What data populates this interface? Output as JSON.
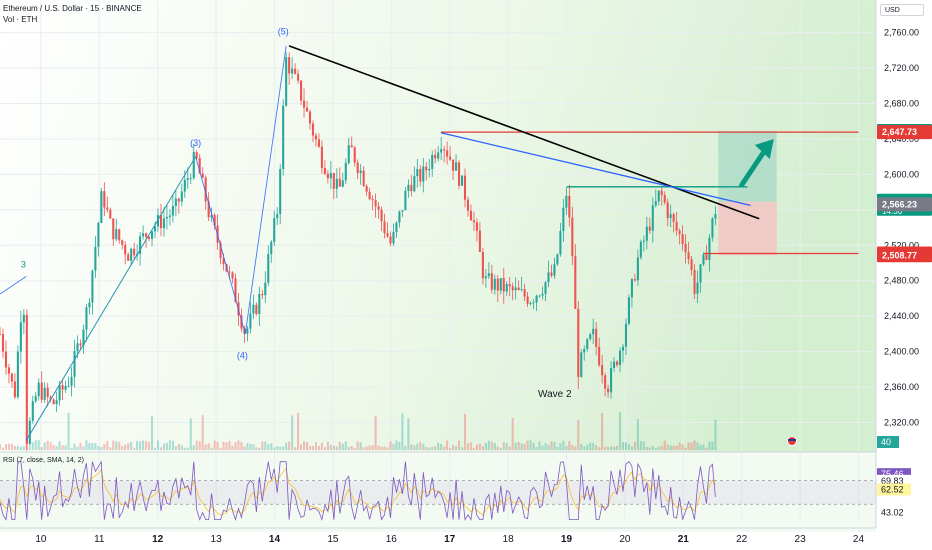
{
  "header": {
    "symbol_line": "Ethereum / U.S. Dollar · 15 · BINANCE",
    "volume_line": "Vol · ETH",
    "currency": "USD"
  },
  "colors": {
    "up": "#26a69a",
    "down": "#ef5350",
    "target_zone": "#a8d8c6",
    "stop_zone": "#f2c4c2",
    "trendline": "#000000",
    "wave_line": "#2962ff",
    "resistance": "#e53935",
    "support": "#089981",
    "arrow": "#089981",
    "rsi_line": "#7e57c2",
    "rsi_ma": "#fbc02d"
  },
  "chart_data": {
    "type": "candlestick",
    "symbol": "ETH/USD",
    "timeframe": "15",
    "exchange": "BINANCE",
    "x": {
      "ticks": [
        "10",
        "11",
        "12",
        "13",
        "14",
        "15",
        "16",
        "17",
        "18",
        "19",
        "20",
        "21",
        "22",
        "23",
        "24"
      ],
      "bold_ticks": [
        "12",
        "14",
        "17",
        "19",
        "21"
      ],
      "range_days": [
        9.3,
        24.3
      ]
    },
    "y": {
      "ticks": [
        2320,
        2360,
        2400,
        2440,
        2480,
        2520,
        2560,
        2600,
        2640,
        2680,
        2720,
        2760
      ],
      "tick_labels": [
        "2,320.00",
        "2,360.00",
        "2,400.00",
        "2,440.00",
        "2,480.00",
        "2,520.00",
        "2,560.00",
        "2,600.00",
        "2,640.00",
        "2,680.00",
        "2,720.00",
        "2,760.00"
      ],
      "range": [
        2289,
        2772
      ]
    },
    "price_path": [
      [
        9.3,
        2420
      ],
      [
        9.55,
        2350
      ],
      [
        9.7,
        2480
      ],
      [
        9.75,
        2300
      ],
      [
        9.95,
        2360
      ],
      [
        10.2,
        2340
      ],
      [
        10.5,
        2370
      ],
      [
        10.8,
        2450
      ],
      [
        11.05,
        2580
      ],
      [
        11.2,
        2540
      ],
      [
        11.5,
        2510
      ],
      [
        11.9,
        2540
      ],
      [
        12.3,
        2560
      ],
      [
        12.65,
        2620
      ],
      [
        12.9,
        2550
      ],
      [
        13.3,
        2470
      ],
      [
        13.5,
        2420
      ],
      [
        13.8,
        2470
      ],
      [
        14.05,
        2560
      ],
      [
        14.2,
        2730
      ],
      [
        14.45,
        2690
      ],
      [
        14.8,
        2620
      ],
      [
        15.1,
        2580
      ],
      [
        15.3,
        2630
      ],
      [
        15.7,
        2570
      ],
      [
        16.0,
        2520
      ],
      [
        16.3,
        2590
      ],
      [
        16.55,
        2600
      ],
      [
        16.85,
        2640
      ],
      [
        17.15,
        2600
      ],
      [
        17.4,
        2550
      ],
      [
        17.6,
        2480
      ],
      [
        18.0,
        2470
      ],
      [
        18.4,
        2460
      ],
      [
        18.8,
        2490
      ],
      [
        19.0,
        2580
      ],
      [
        19.1,
        2510
      ],
      [
        19.2,
        2380
      ],
      [
        19.45,
        2420
      ],
      [
        19.7,
        2360
      ],
      [
        19.95,
        2410
      ],
      [
        20.2,
        2500
      ],
      [
        20.45,
        2550
      ],
      [
        20.6,
        2580
      ],
      [
        20.85,
        2540
      ],
      [
        21.05,
        2520
      ],
      [
        21.2,
        2470
      ],
      [
        21.35,
        2500
      ],
      [
        21.55,
        2560
      ]
    ],
    "ohlc_shown": {
      "last": 2566.23
    },
    "price_labels": [
      {
        "value": 2649.04,
        "text": "2,649.04",
        "color": "#089981"
      },
      {
        "value": 2647.73,
        "text": "2,647.73",
        "color": "#e53935"
      },
      {
        "value": 2569.11,
        "text": "2,569.11",
        "sub": "14:36",
        "color": "#089981"
      },
      {
        "value": 2566.23,
        "text": "2,566.23",
        "color": "#787b86"
      },
      {
        "value": 2510.74,
        "text": "2,510.74",
        "color": "#e53935"
      },
      {
        "value": 2508.77,
        "text": "2,508.77",
        "color": "#e53935"
      }
    ],
    "position": {
      "entry": 2569.11,
      "target": 2649.04,
      "stop": 2508.77,
      "x_start": 21.6,
      "x_end": 22.6
    },
    "levels": [
      {
        "name": "resistance",
        "value": 2647.73,
        "x_start": 16.85,
        "x_end": 24.0
      },
      {
        "name": "support",
        "value": 2510.74,
        "x_start": 21.35,
        "x_end": 24.0
      },
      {
        "name": "neckline",
        "value": 2586,
        "x_start": 19.0,
        "x_end": 22.1
      }
    ],
    "trendlines": [
      {
        "name": "black-trendline",
        "from": [
          14.25,
          2745
        ],
        "to": [
          22.3,
          2550
        ]
      },
      {
        "name": "blue-trendline",
        "from": [
          16.85,
          2647
        ],
        "to": [
          22.15,
          2565
        ]
      }
    ],
    "elliott_waves": [
      {
        "from": [
          9.3,
          2465
        ],
        "to": [
          9.75,
          2485
        ]
      },
      {
        "from": [
          9.75,
          2300
        ],
        "to": [
          12.65,
          2620
        ]
      },
      {
        "from": [
          9.8,
          2305
        ],
        "to": [
          12.65,
          2620
        ]
      },
      {
        "from": [
          12.65,
          2620
        ],
        "to": [
          13.5,
          2420
        ]
      },
      {
        "from": [
          13.5,
          2420
        ],
        "to": [
          14.2,
          2745
        ]
      }
    ],
    "wave_labels": [
      {
        "text": "3",
        "at": [
          9.7,
          2495
        ],
        "color": "#089981"
      },
      {
        "text": "(3)",
        "at": [
          12.65,
          2632
        ],
        "color": "#2962ff"
      },
      {
        "text": "(4)",
        "at": [
          13.45,
          2392
        ],
        "color": "#2962ff"
      },
      {
        "text": "(5)",
        "at": [
          14.15,
          2758
        ],
        "color": "#2962ff"
      }
    ],
    "annotations": [
      {
        "text": "Wave 2",
        "at": [
          18.8,
          2349
        ]
      }
    ],
    "arrow": {
      "from": [
        22.0,
        2588
      ],
      "to": [
        22.55,
        2640
      ]
    },
    "volume": {
      "label": "40"
    },
    "rsi": {
      "label": "RSI (7, close, SMA, 14, 2)",
      "levels": [
        {
          "text": "75.46",
          "value": 75.46,
          "bg": "#7e57c2",
          "fg": "#ffffff"
        },
        {
          "text": "69.83",
          "value": 69.83,
          "bg": "#ffffff",
          "fg": "#131722"
        },
        {
          "text": "62.52",
          "value": 62.52,
          "bg": "#fff59d",
          "fg": "#131722"
        },
        {
          "text": "43.02",
          "value": 43.02,
          "bg": "#ffffff",
          "fg": "#131722"
        }
      ],
      "band": [
        50,
        70
      ],
      "ylim": [
        35,
        90
      ]
    },
    "legend": null,
    "grid": true
  }
}
